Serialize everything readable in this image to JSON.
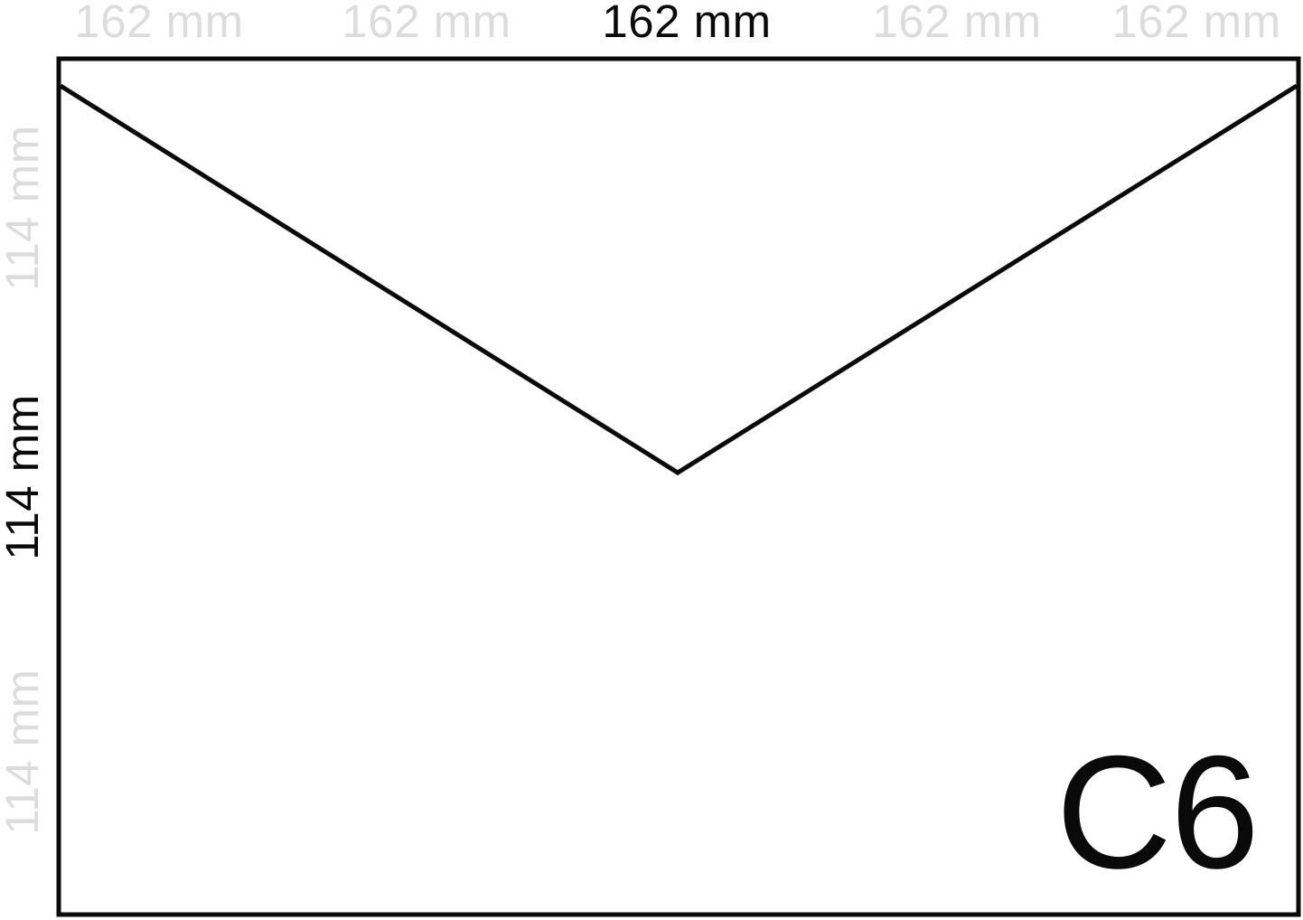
{
  "dimensions": {
    "width_label": "162 mm",
    "height_label": "114 mm"
  },
  "envelope": {
    "format": "C6"
  },
  "colors": {
    "line": "#0a0a0a",
    "active_text": "#0a0a0a",
    "faded_text": "#dcdcdc",
    "background": "#ffffff"
  }
}
